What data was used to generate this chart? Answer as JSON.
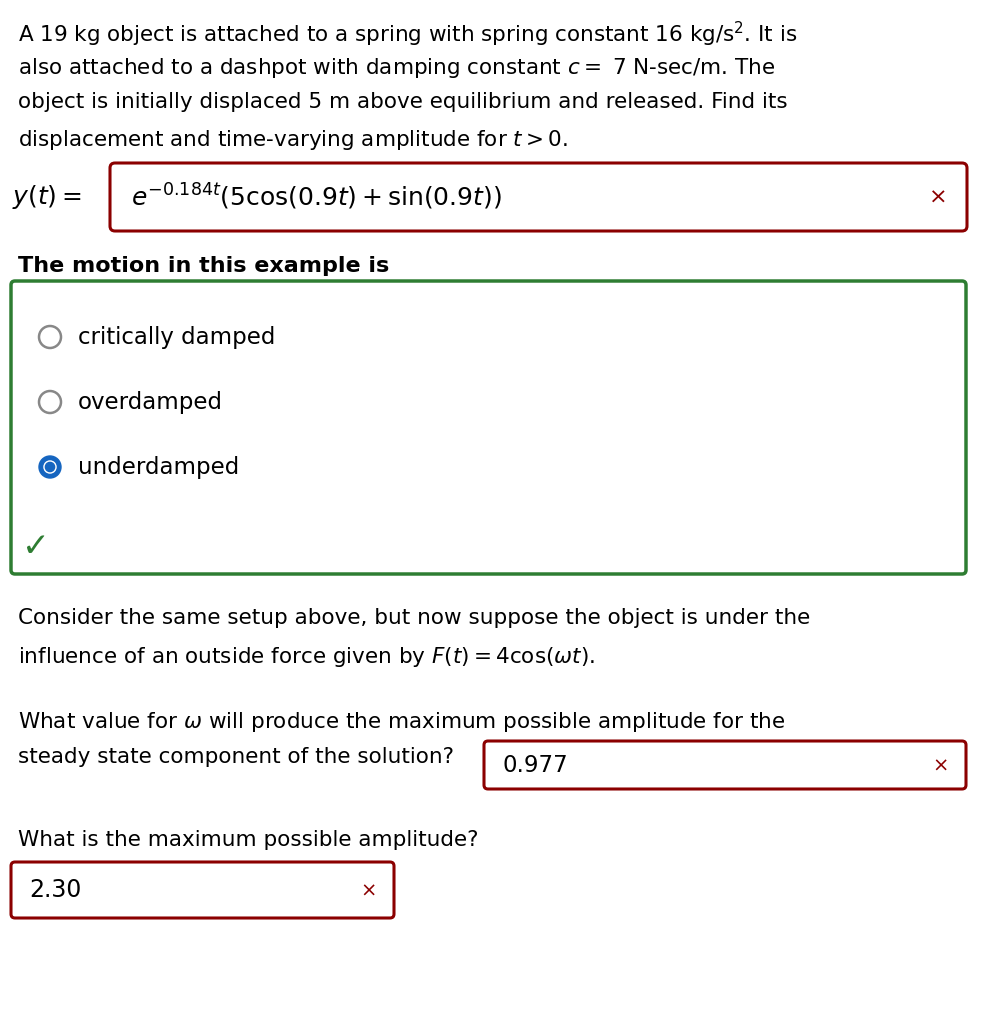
{
  "bg_color": "#ffffff",
  "text_color": "#000000",
  "dark_red": "#8b0000",
  "green": "#2e7d32",
  "blue": "#1565c0",
  "radio_gray": "#888888",
  "para1_lines": [
    "A 19 kg object is attached to a spring with spring constant 16 kg/s$^2$. It is",
    "also attached to a dashpot with damping constant $c =$ 7 N-sec/m. The",
    "object is initially displaced 5 m above equilibrium and released. Find its",
    "displacement and time-varying amplitude for $t > 0$."
  ],
  "motion_label": "The motion in this example is",
  "radio_options": [
    "critically damped",
    "overdamped",
    "underdamped"
  ],
  "radio_selected": 2,
  "para2_lines": [
    "Consider the same setup above, but now suppose the object is under the",
    "influence of an outside force given by $F(t) = 4\\cos(\\omega t)$."
  ],
  "q1_line1": "What value for $\\omega$ will produce the maximum possible amplitude for the",
  "q1_line2": "steady state component of the solution?",
  "q1_answer": "0.977",
  "q2_line": "What is the maximum possible amplitude?",
  "q2_answer": "2.30",
  "fig_width": 9.84,
  "fig_height": 10.18,
  "dpi": 100
}
